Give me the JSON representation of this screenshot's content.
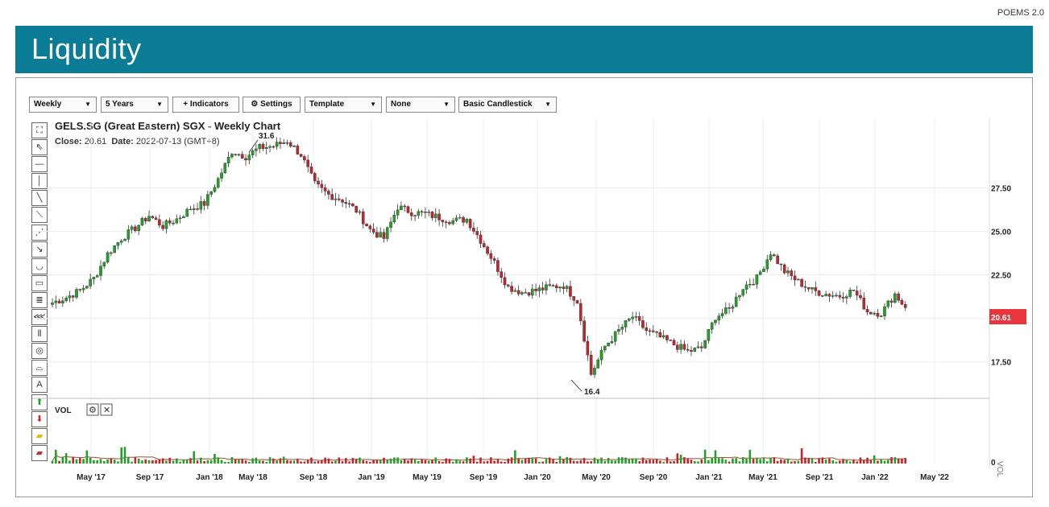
{
  "brand": "POEMS 2.0",
  "banner": {
    "title": "Liquidity"
  },
  "toolbar": {
    "interval": "Weekly",
    "range": "5 Years",
    "indicators": "+ Indicators",
    "settings": "⚙ Settings",
    "template": "Template",
    "compare": "None",
    "chart_style": "Basic Candlestick"
  },
  "tools": [
    "expand-icon",
    "pointer-icon",
    "horizontal-line-icon",
    "vertical-line-icon",
    "trend-line-icon",
    "ray-icon",
    "parallel-channel-icon",
    "arrow-line-icon",
    "arc-icon",
    "rectangle-icon",
    "fibonacci-icon",
    "fan-icon",
    "gann-icon",
    "circle-icon",
    "pitchfork-icon",
    "text-icon",
    "up-arrow-icon",
    "down-arrow-icon",
    "eraser-icon",
    "delete-icon"
  ],
  "header": {
    "title": "GELS.SG (Great Eastern) SGX - Weekly Chart",
    "close_label": "Close:",
    "close_value": "20.61",
    "date_label": "Date:",
    "date_value": "2022-07-13 (GMT+8)"
  },
  "volume_panel": {
    "label": "VOL",
    "axis_label": "VOL",
    "zero_label": "0"
  },
  "colors": {
    "up": "#22a02a",
    "down": "#c0262c",
    "last_price_bg": "#e8363c",
    "banner": "#0a7c96",
    "ma_line": "#a0522d"
  },
  "chart_data": {
    "type": "candlestick",
    "symbol": "GELS.SG",
    "interval": "weekly",
    "ylim": [
      15.5,
      30.8
    ],
    "y_ticks": [
      17.5,
      20.0,
      22.5,
      25.0,
      27.5
    ],
    "y_tick_labels": [
      "17.50",
      "20.00",
      "22.50",
      "25.00",
      "27.50"
    ],
    "x_tick_labels": [
      "May '17",
      "Sep '17",
      "Jan '18",
      "May '18",
      "Sep '18",
      "Jan '19",
      "May '19",
      "Sep '19",
      "Jan '20",
      "May '20",
      "Sep '20",
      "Jan '21",
      "May '21",
      "Sep '21",
      "Jan '22",
      "May '22"
    ],
    "last_price": 20.61,
    "annotations": [
      {
        "text": "31.6",
        "value": 31.6,
        "type": "max"
      },
      {
        "text": "16.4",
        "value": 16.4,
        "type": "min"
      }
    ],
    "close_series_anchor_points": [
      [
        0,
        20.9
      ],
      [
        4,
        21.2
      ],
      [
        8,
        21.6
      ],
      [
        12,
        22.3
      ],
      [
        16,
        23.7
      ],
      [
        20,
        24.6
      ],
      [
        24,
        25.2
      ],
      [
        28,
        25.9
      ],
      [
        32,
        25.3
      ],
      [
        36,
        25.7
      ],
      [
        40,
        26.3
      ],
      [
        44,
        26.6
      ],
      [
        48,
        28.0
      ],
      [
        52,
        29.6
      ],
      [
        56,
        29.3
      ],
      [
        60,
        29.8
      ],
      [
        64,
        29.9
      ],
      [
        68,
        30.2
      ],
      [
        72,
        29.4
      ],
      [
        76,
        27.7
      ],
      [
        80,
        27.1
      ],
      [
        84,
        26.8
      ],
      [
        88,
        26.2
      ],
      [
        92,
        25.1
      ],
      [
        96,
        24.6
      ],
      [
        100,
        26.4
      ],
      [
        104,
        26.1
      ],
      [
        108,
        26.0
      ],
      [
        112,
        25.8
      ],
      [
        116,
        25.6
      ],
      [
        120,
        25.7
      ],
      [
        124,
        24.5
      ],
      [
        128,
        23.2
      ],
      [
        132,
        21.8
      ],
      [
        136,
        21.5
      ],
      [
        140,
        21.6
      ],
      [
        144,
        21.8
      ],
      [
        148,
        21.9
      ],
      [
        152,
        21.0
      ],
      [
        156,
        16.8
      ],
      [
        160,
        18.4
      ],
      [
        164,
        19.3
      ],
      [
        168,
        20.1
      ],
      [
        172,
        19.3
      ],
      [
        176,
        18.9
      ],
      [
        180,
        18.5
      ],
      [
        184,
        18.1
      ],
      [
        188,
        18.3
      ],
      [
        192,
        20.1
      ],
      [
        196,
        20.5
      ],
      [
        200,
        21.8
      ],
      [
        204,
        22.3
      ],
      [
        208,
        23.8
      ],
      [
        212,
        22.7
      ],
      [
        216,
        22.1
      ],
      [
        220,
        21.6
      ],
      [
        224,
        21.4
      ],
      [
        228,
        21.3
      ],
      [
        232,
        21.6
      ],
      [
        236,
        20.4
      ],
      [
        240,
        20.3
      ],
      [
        244,
        21.4
      ],
      [
        247,
        20.61
      ]
    ]
  }
}
